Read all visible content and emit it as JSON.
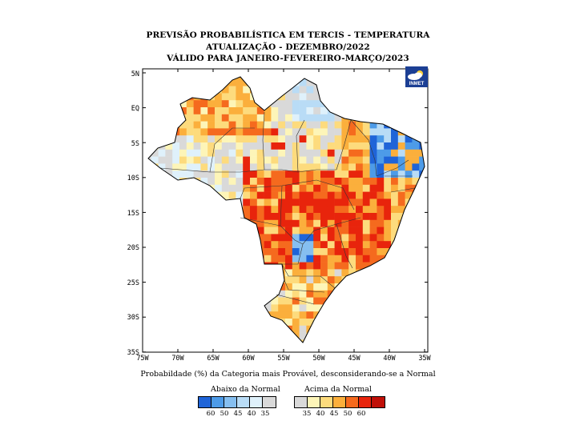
{
  "title": {
    "line1": "PREVISÃO PROBABILÍSTICA EM TERCIS - TEMPERATURA",
    "line2": "ATUALIZAÇÃO - DEZEMBRO/2022",
    "line3": "VÁLIDO PARA JANEIRO-FEVEREIRO-MARÇO/2023"
  },
  "logo": {
    "text": "INMET",
    "icon": "weather-cloud-sun-icon"
  },
  "axes": {
    "longitude_ticks": [
      "75W",
      "70W",
      "65W",
      "60W",
      "55W",
      "50W",
      "45W",
      "40W",
      "35W"
    ],
    "latitude_ticks": [
      "5N",
      "EQ",
      "5S",
      "10S",
      "15S",
      "20S",
      "25S",
      "30S",
      "35S"
    ]
  },
  "caption": "Probabildade (%) da Categoria mais Provável, desconsiderando-se a Normal",
  "legend": {
    "below": {
      "title": "Abaixo da Normal",
      "labels": [
        "60",
        "50",
        "45",
        "40",
        "35"
      ],
      "colors": [
        "#1f64d8",
        "#4d9be8",
        "#86bff0",
        "#b9dcf6",
        "#dff1fb",
        "#d9d9d9"
      ]
    },
    "above": {
      "title": "Acima da Normal",
      "labels": [
        "35",
        "40",
        "45",
        "50",
        "60"
      ],
      "colors": [
        "#d9d9d9",
        "#fdf5b8",
        "#fddb7d",
        "#fbaf3c",
        "#f56a1e",
        "#e8240c",
        "#c01008"
      ]
    }
  },
  "colors": {
    "normal": "#d9d9d9",
    "above_35": "#fdf5b8",
    "above_40": "#fddb7d",
    "above_45": "#fbaf3c",
    "above_50": "#f56a1e",
    "above_60": "#e8240c",
    "below_35": "#dff1fb",
    "below_40": "#b9dcf6",
    "below_45": "#86bff0",
    "below_50": "#4d9be8",
    "below_60": "#1f64d8"
  }
}
